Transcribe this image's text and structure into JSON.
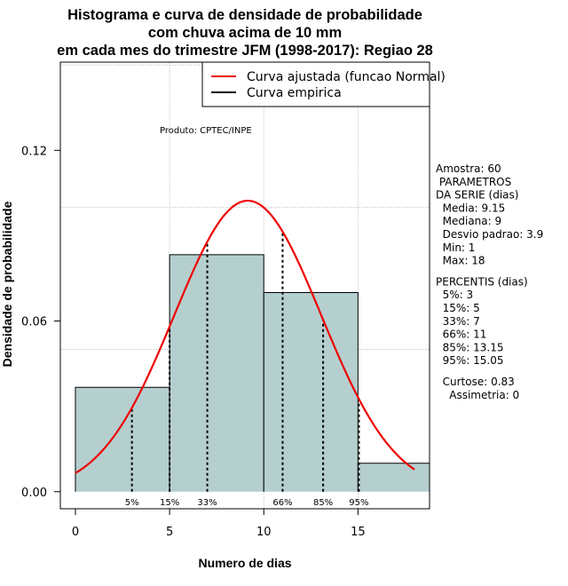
{
  "chart_data": {
    "type": "bar",
    "title_lines": [
      "Histograma e curva de densidade de probabilidade",
      "com chuva acima de 10 mm",
      "em cada mes do trimestre JFM (1998-2017): Regiao 28"
    ],
    "xlabel": "Numero de dias",
    "ylabel": "Densidade de probabilidade",
    "xlim": [
      -0.8,
      18.8
    ],
    "ylim": [
      -0.006,
      0.151
    ],
    "xticks": [
      0,
      5,
      10,
      15
    ],
    "xtick_labels": [
      "0",
      "5",
      "10",
      "15"
    ],
    "yticks": [
      0.0,
      0.06,
      0.12
    ],
    "ytick_labels": [
      "0.00",
      "0.06",
      "0.12"
    ],
    "grid": true,
    "grid_lines": {
      "x": [
        5,
        10,
        15
      ],
      "y": [
        0.05,
        0.1,
        0.15
      ]
    },
    "bins": [
      {
        "x0": 0,
        "x1": 5,
        "density": 0.0367
      },
      {
        "x0": 5,
        "x1": 10,
        "density": 0.0833
      },
      {
        "x0": 10,
        "x1": 15,
        "density": 0.07
      },
      {
        "x0": 15,
        "x1": 18.8,
        "density": 0.01
      }
    ],
    "fitted_curve": {
      "name": "Curva ajustada (funcao Normal)",
      "distribution": "normal",
      "mean": 9.15,
      "sd": 3.9,
      "x_range": [
        0,
        18
      ],
      "color": "#ee0000"
    },
    "empirical_curve": {
      "name": "Curva empirica",
      "color": "#000000"
    },
    "percentile_lines": [
      {
        "label": "5%",
        "x": 3
      },
      {
        "label": "15%",
        "x": 5
      },
      {
        "label": "33%",
        "x": 7
      },
      {
        "label": "66%",
        "x": 11
      },
      {
        "label": "85%",
        "x": 13.15
      },
      {
        "label": "95%",
        "x": 15.05
      }
    ],
    "legend_position": "top-right",
    "annotation": "Produto: CPTEC/INPE",
    "colors": {
      "bar_fill": "#b5cfcf",
      "grid": "#bdbdbd"
    }
  },
  "stats": [
    "Amostra: 60",
    " PARAMETROS",
    "DA SERIE (dias)",
    "  Media: 9.15",
    "  Mediana: 9",
    "  Desvio padrao: 3.9",
    "  Min: 1",
    "  Max: 18",
    "",
    "PERCENTIS (dias)",
    "  5%: 3",
    "  15%: 5",
    "  33%: 7",
    "  66%: 11",
    "  85%: 13.15",
    "  95%: 15.05",
    "",
    "  Curtose: 0.83",
    "    Assimetria: 0"
  ]
}
